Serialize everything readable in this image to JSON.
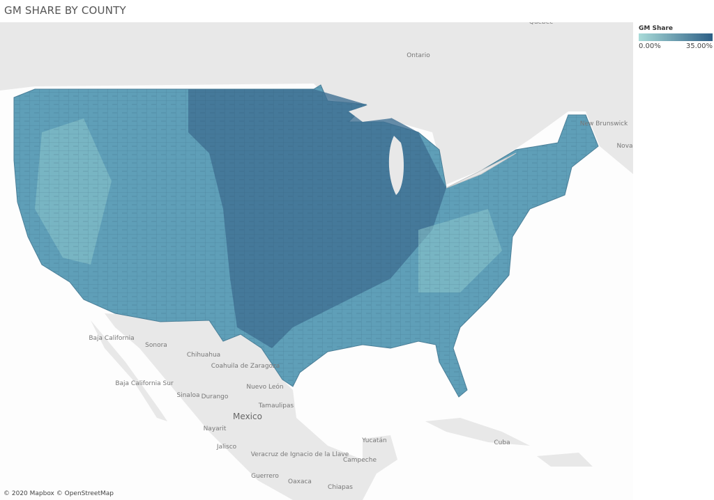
{
  "header": {
    "title": "GM SHARE BY COUNTY"
  },
  "legend": {
    "title": "GM Share",
    "min_label": "0.00%",
    "max_label": "35.00%"
  },
  "map_labels": {
    "canada": [
      "Quebec",
      "Ontario",
      "New Brunswick",
      "Nova"
    ],
    "mexico": [
      "Baja California",
      "Sonora",
      "Chihuahua",
      "Coahuila de Zaragoza",
      "Nuevo León",
      "Tamaulipas",
      "Mexico",
      "Baja California Sur",
      "Sinaloa",
      "Durango",
      "Nayarit",
      "Jalisco",
      "Veracruz de Ignacio de la Llave",
      "Yucatán",
      "Campeche",
      "Cuba",
      "Guerrero",
      "Oaxaca",
      "Chiapas"
    ]
  },
  "attribution": "© 2020 Mapbox © OpenStreetMap"
}
